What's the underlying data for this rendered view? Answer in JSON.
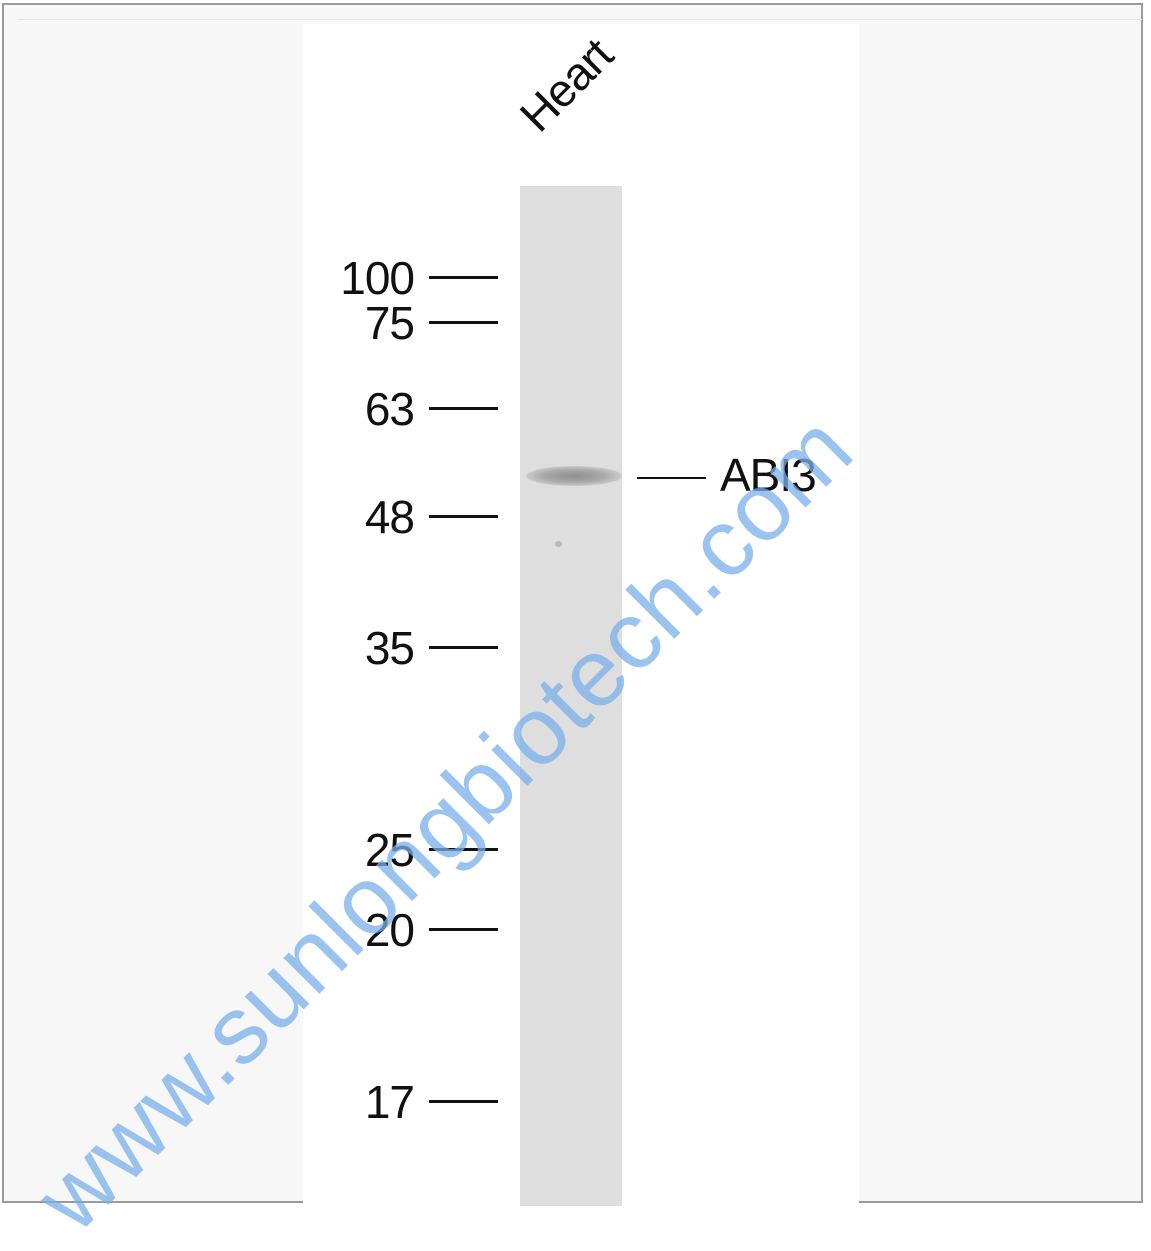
{
  "lane_label": "Heart",
  "target_label": "ABI3",
  "watermark": "www.sunlongbiotech.com",
  "markers": [
    {
      "label": "100",
      "kda": 100
    },
    {
      "label": "75",
      "kda": 75
    },
    {
      "label": "63",
      "kda": 63
    },
    {
      "label": "48",
      "kda": 48
    },
    {
      "label": "35",
      "kda": 35
    },
    {
      "label": "25",
      "kda": 25
    },
    {
      "label": "20",
      "kda": 20
    },
    {
      "label": "17",
      "kda": 17
    }
  ],
  "colors": {
    "lane": "#dedede",
    "band": "#9a9a9a",
    "watermark": "#78afeb"
  }
}
